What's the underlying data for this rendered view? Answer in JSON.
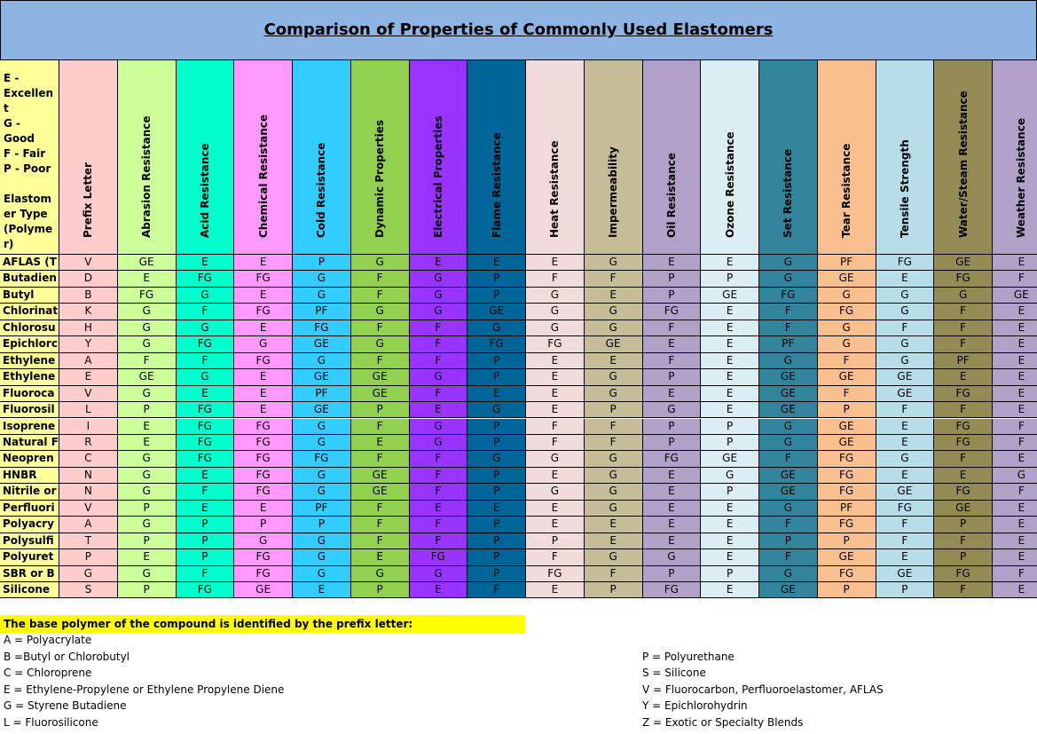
{
  "title": "Comparison of Properties of Commonly Used Elastomers",
  "legend_lines": [
    "E -",
    "Excellen",
    "t",
    "G -",
    "Good",
    "F - Fair",
    "P - Poor",
    "",
    "Elastom",
    "er Type",
    "(Polyme",
    "r)"
  ],
  "columns": [
    {
      "label": "Prefix Letter",
      "color": "#ffcccc"
    },
    {
      "label": "Abrasion Resistance",
      "color": "#ccff99"
    },
    {
      "label": "Acid Resistance",
      "color": "#00ffcc"
    },
    {
      "label": "Chemical Resistance",
      "color": "#ff99ff"
    },
    {
      "label": "Cold Resistance",
      "color": "#33ccff"
    },
    {
      "label": "Dynamic Properties",
      "color": "#92d050"
    },
    {
      "label": "Electrical Properties",
      "color": "#9933ff"
    },
    {
      "label": "Flame Resistance",
      "color": "#006699"
    },
    {
      "label": "Heat Resistance",
      "color": "#f2dcdb"
    },
    {
      "label": "Impermeability",
      "color": "#c4bd97"
    },
    {
      "label": "Oil Resistance",
      "color": "#b1a0c7"
    },
    {
      "label": "Ozone Resistance",
      "color": "#daeef3"
    },
    {
      "label": "Set Resistance",
      "color": "#31849b"
    },
    {
      "label": "Tear Resistance",
      "color": "#fabf8f"
    },
    {
      "label": "Tensile Strength",
      "color": "#b7dee8"
    },
    {
      "label": "Water/Steam Resistance",
      "color": "#948a54"
    },
    {
      "label": "Weather Resistance",
      "color": "#b1a0c7"
    }
  ],
  "rows": [
    {
      "name": "AFLAS (T",
      "values": [
        "V",
        "GE",
        "E",
        "E",
        "P",
        "G",
        "E",
        "E",
        "E",
        "G",
        "E",
        "E",
        "G",
        "PF",
        "FG",
        "GE",
        "E"
      ]
    },
    {
      "name": "Butadien",
      "values": [
        "D",
        "E",
        "FG",
        "FG",
        "G",
        "F",
        "G",
        "P",
        "F",
        "F",
        "P",
        "P",
        "G",
        "GE",
        "E",
        "FG",
        "F"
      ]
    },
    {
      "name": "Butyl",
      "values": [
        "B",
        "FG",
        "G",
        "E",
        "G",
        "F",
        "G",
        "P",
        "G",
        "E",
        "P",
        "GE",
        "FG",
        "G",
        "G",
        "G",
        "GE"
      ]
    },
    {
      "name": "Chlorinat",
      "values": [
        "K",
        "G",
        "F",
        "FG",
        "PF",
        "G",
        "G",
        "GE",
        "G",
        "G",
        "FG",
        "E",
        "F",
        "FG",
        "G",
        "F",
        "E"
      ]
    },
    {
      "name": "Chlorosu",
      "values": [
        "H",
        "G",
        "G",
        "E",
        "FG",
        "F",
        "F",
        "G",
        "G",
        "G",
        "F",
        "E",
        "F",
        "G",
        "F",
        "F",
        "E"
      ]
    },
    {
      "name": "Epichlorc",
      "values": [
        "Y",
        "G",
        "FG",
        "G",
        "GE",
        "G",
        "F",
        "FG",
        "FG",
        "GE",
        "E",
        "E",
        "PF",
        "G",
        "G",
        "F",
        "E"
      ]
    },
    {
      "name": "Ethylene",
      "values": [
        "A",
        "F",
        "F",
        "FG",
        "G",
        "F",
        "F",
        "P",
        "E",
        "E",
        "F",
        "E",
        "G",
        "F",
        "G",
        "PF",
        "E"
      ]
    },
    {
      "name": "Ethylene",
      "values": [
        "E",
        "GE",
        "G",
        "E",
        "GE",
        "GE",
        "G",
        "P",
        "E",
        "G",
        "P",
        "E",
        "GE",
        "GE",
        "GE",
        "E",
        "E"
      ]
    },
    {
      "name": "Fluoroca",
      "values": [
        "V",
        "G",
        "E",
        "E",
        "PF",
        "GE",
        "F",
        "E",
        "E",
        "G",
        "E",
        "E",
        "GE",
        "F",
        "GE",
        "FG",
        "E"
      ]
    },
    {
      "name": "Fluorosil",
      "values": [
        "L",
        "P",
        "FG",
        "E",
        "GE",
        "P",
        "E",
        "G",
        "E",
        "P",
        "G",
        "E",
        "GE",
        "P",
        "F",
        "F",
        "E"
      ]
    },
    {
      "name": "Isoprene",
      "values": [
        "I",
        "E",
        "FG",
        "FG",
        "G",
        "F",
        "G",
        "P",
        "F",
        "F",
        "P",
        "P",
        "G",
        "GE",
        "E",
        "FG",
        "F"
      ]
    },
    {
      "name": "Natural F",
      "values": [
        "R",
        "E",
        "FG",
        "FG",
        "G",
        "E",
        "G",
        "P",
        "F",
        "F",
        "P",
        "P",
        "G",
        "GE",
        "E",
        "FG",
        "F"
      ]
    },
    {
      "name": "Neopren",
      "values": [
        "C",
        "G",
        "FG",
        "FG",
        "FG",
        "F",
        "F",
        "G",
        "G",
        "G",
        "FG",
        "GE",
        "F",
        "FG",
        "G",
        "F",
        "E"
      ]
    },
    {
      "name": "HNBR",
      "values": [
        "N",
        "G",
        "E",
        "FG",
        "G",
        "GE",
        "F",
        "P",
        "E",
        "G",
        "E",
        "G",
        "GE",
        "FG",
        "E",
        "E",
        "G"
      ]
    },
    {
      "name": "Nitrile or",
      "values": [
        "N",
        "G",
        "F",
        "FG",
        "G",
        "GE",
        "F",
        "P",
        "G",
        "G",
        "E",
        "P",
        "GE",
        "FG",
        "GE",
        "FG",
        "F"
      ]
    },
    {
      "name": "Perfluori",
      "values": [
        "V",
        "P",
        "E",
        "E",
        "PF",
        "F",
        "E",
        "E",
        "E",
        "G",
        "E",
        "E",
        "G",
        "PF",
        "FG",
        "GE",
        "E"
      ]
    },
    {
      "name": "Polyacry",
      "values": [
        "A",
        "G",
        "P",
        "P",
        "P",
        "F",
        "F",
        "P",
        "E",
        "E",
        "E",
        "E",
        "F",
        "FG",
        "F",
        "P",
        "E"
      ]
    },
    {
      "name": "Polysulfi",
      "values": [
        "T",
        "P",
        "P",
        "G",
        "G",
        "F",
        "F",
        "P",
        "P",
        "E",
        "E",
        "E",
        "P",
        "P",
        "F",
        "F",
        "E"
      ]
    },
    {
      "name": "Polyuret",
      "values": [
        "P",
        "E",
        "P",
        "FG",
        "G",
        "E",
        "FG",
        "P",
        "F",
        "G",
        "G",
        "E",
        "F",
        "GE",
        "E",
        "P",
        "E"
      ]
    },
    {
      "name": "SBR or B",
      "values": [
        "G",
        "G",
        "F",
        "FG",
        "G",
        "G",
        "G",
        "P",
        "FG",
        "F",
        "P",
        "P",
        "G",
        "FG",
        "GE",
        "FG",
        "F"
      ]
    },
    {
      "name": "Silicone",
      "values": [
        "S",
        "P",
        "FG",
        "GE",
        "E",
        "P",
        "E",
        "F",
        "E",
        "P",
        "FG",
        "E",
        "GE",
        "P",
        "P",
        "F",
        "E"
      ]
    }
  ],
  "note": "The base polymer of the compound is identified by the prefix letter:",
  "key_left": [
    "A = Polyacrylate",
    "B =Butyl or Chlorobutyl",
    "C = Chloroprene",
    "E = Ethylene-Propylene or Ethylene Propylene Diene",
    "G = Styrene Butadiene",
    "L = Fluorosilicone"
  ],
  "key_right": [
    "P = Polyurethane",
    "S = Silicone",
    "V = Fluorocarbon, Perfluoroelastomer, AFLAS",
    "Y = Epichlorohydrin",
    "Z = Exotic or Specialty Blends"
  ]
}
